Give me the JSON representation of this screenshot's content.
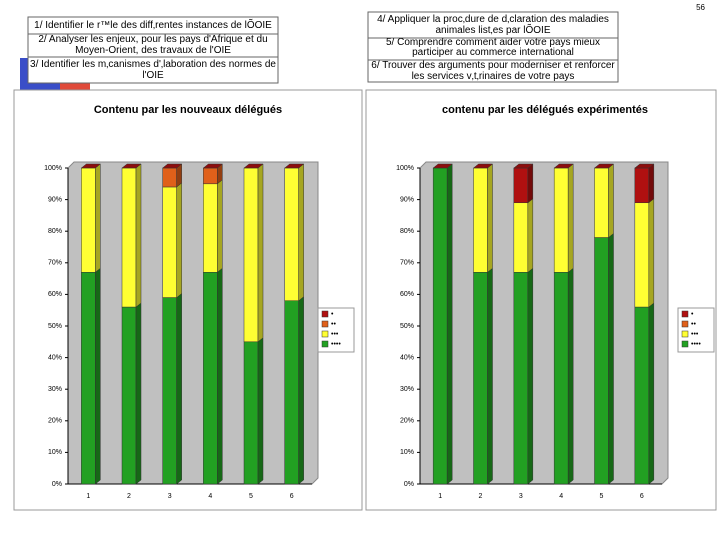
{
  "page_number": "56",
  "objectives": [
    "1/ Identifier le r™le des diff‚rentes instances de lÕOIE",
    "2/ Analyser les enjeux, pour les pays d'Afrique et du Moyen-Orient, des travaux de l'OIE",
    "3/ Identifier les m‚canismes d'‚laboration des normes de l'OIE",
    "4/ Appliquer la proc‚dure de d‚claration des maladies animales list‚es par lÕOIE",
    "5/ Comprendre comment aider votre pays   mieux participer au commerce international",
    "6/ Trouver des arguments pour moderniser et renforcer les services v‚t‚rinaires de votre pays"
  ],
  "chart_data": [
    {
      "type": "bar",
      "stacked": true,
      "title": "Contenu par les nouveaux délégués",
      "categories": [
        "1",
        "2",
        "3",
        "4",
        "5",
        "6"
      ],
      "series": [
        {
          "name": "••••",
          "color": "#22a022",
          "values": [
            67,
            56,
            59,
            67,
            45,
            58
          ]
        },
        {
          "name": "•••",
          "color": "#ffff33",
          "values": [
            33,
            44,
            35,
            28,
            55,
            42
          ]
        },
        {
          "name": "••",
          "color": "#e0601a",
          "values": [
            0,
            0,
            6,
            5,
            0,
            0
          ]
        },
        {
          "name": "•",
          "color": "#b01010",
          "values": [
            0,
            0,
            0,
            0,
            0,
            0
          ]
        }
      ],
      "ylim": [
        0,
        100
      ],
      "yticks": [
        {
          "value": 0,
          "label": "0%"
        },
        {
          "value": 10,
          "label": "10%"
        },
        {
          "value": 20,
          "label": "20%"
        },
        {
          "value": 30,
          "label": "30%"
        },
        {
          "value": 40,
          "label": "40%"
        },
        {
          "value": 50,
          "label": "50%"
        },
        {
          "value": 60,
          "label": "60%"
        },
        {
          "value": 70,
          "label": "70%"
        },
        {
          "value": 80,
          "label": "80%"
        },
        {
          "value": 90,
          "label": "90%"
        },
        {
          "value": 100,
          "label": "100%"
        }
      ],
      "grid": false,
      "legend": "right"
    },
    {
      "type": "bar",
      "stacked": true,
      "title": "contenu par les délégués expérimentés",
      "categories": [
        "1",
        "2",
        "3",
        "4",
        "5",
        "6"
      ],
      "series": [
        {
          "name": "••••",
          "color": "#22a022",
          "values": [
            100,
            67,
            67,
            67,
            78,
            56
          ]
        },
        {
          "name": "•••",
          "color": "#ffff33",
          "values": [
            0,
            33,
            22,
            33,
            22,
            33
          ]
        },
        {
          "name": "••",
          "color": "#e0601a",
          "values": [
            0,
            0,
            0,
            0,
            0,
            0
          ]
        },
        {
          "name": "•",
          "color": "#b01010",
          "values": [
            0,
            0,
            11,
            0,
            0,
            11
          ]
        }
      ],
      "ylim": [
        0,
        100
      ],
      "yticks": [
        {
          "value": 0,
          "label": "0%"
        },
        {
          "value": 10,
          "label": "10%"
        },
        {
          "value": 20,
          "label": "20%"
        },
        {
          "value": 30,
          "label": "30%"
        },
        {
          "value": 40,
          "label": "40%"
        },
        {
          "value": 50,
          "label": "50%"
        },
        {
          "value": 60,
          "label": "60%"
        },
        {
          "value": 70,
          "label": "70%"
        },
        {
          "value": 80,
          "label": "80%"
        },
        {
          "value": 90,
          "label": "90%"
        },
        {
          "value": 100,
          "label": "100%"
        }
      ],
      "grid": false,
      "legend": "right"
    }
  ]
}
